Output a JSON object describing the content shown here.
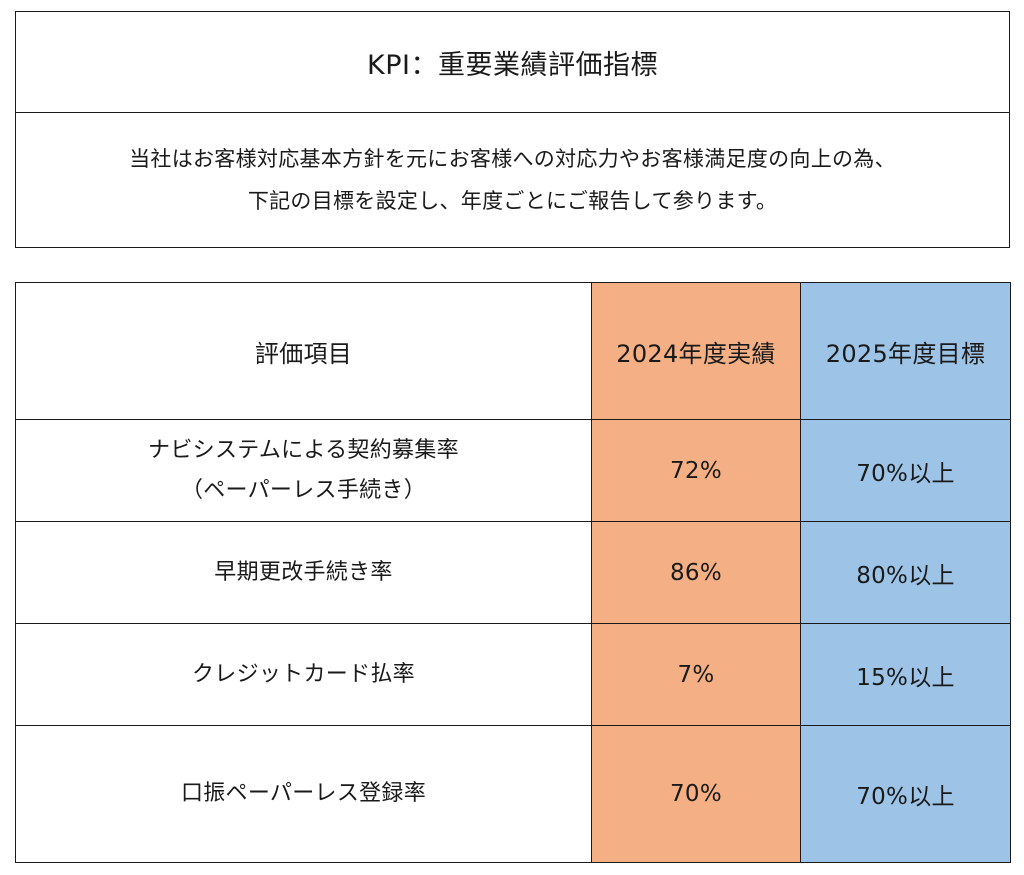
{
  "header": {
    "title": "KPI：重要業績評価指標",
    "description_lines": [
      "当社はお客様対応基本方針を元にお客様への対応力やお客様満足度の向上の為、",
      "下記の目標を設定し、年度ごとにご報告して参ります。"
    ]
  },
  "table": {
    "columns": {
      "item": "評価項目",
      "actual": "2024年度実績",
      "target": "2025年度目標"
    },
    "rows": [
      {
        "item_lines": [
          "ナビシステムによる契約募集率",
          "（ペーパーレス手続き）"
        ],
        "actual": "72%",
        "target": "70%以上"
      },
      {
        "item_lines": [
          "早期更改手続き率"
        ],
        "actual": "86%",
        "target": "80%以上"
      },
      {
        "item_lines": [
          "クレジットカード払率"
        ],
        "actual": "7%",
        "target": "15%以上"
      },
      {
        "item_lines": [
          "口振ペーパーレス登録率"
        ],
        "actual": "70%",
        "target": "70%以上"
      }
    ],
    "colors": {
      "actual_column": "#f4b084",
      "target_column": "#9dc3e6"
    }
  }
}
